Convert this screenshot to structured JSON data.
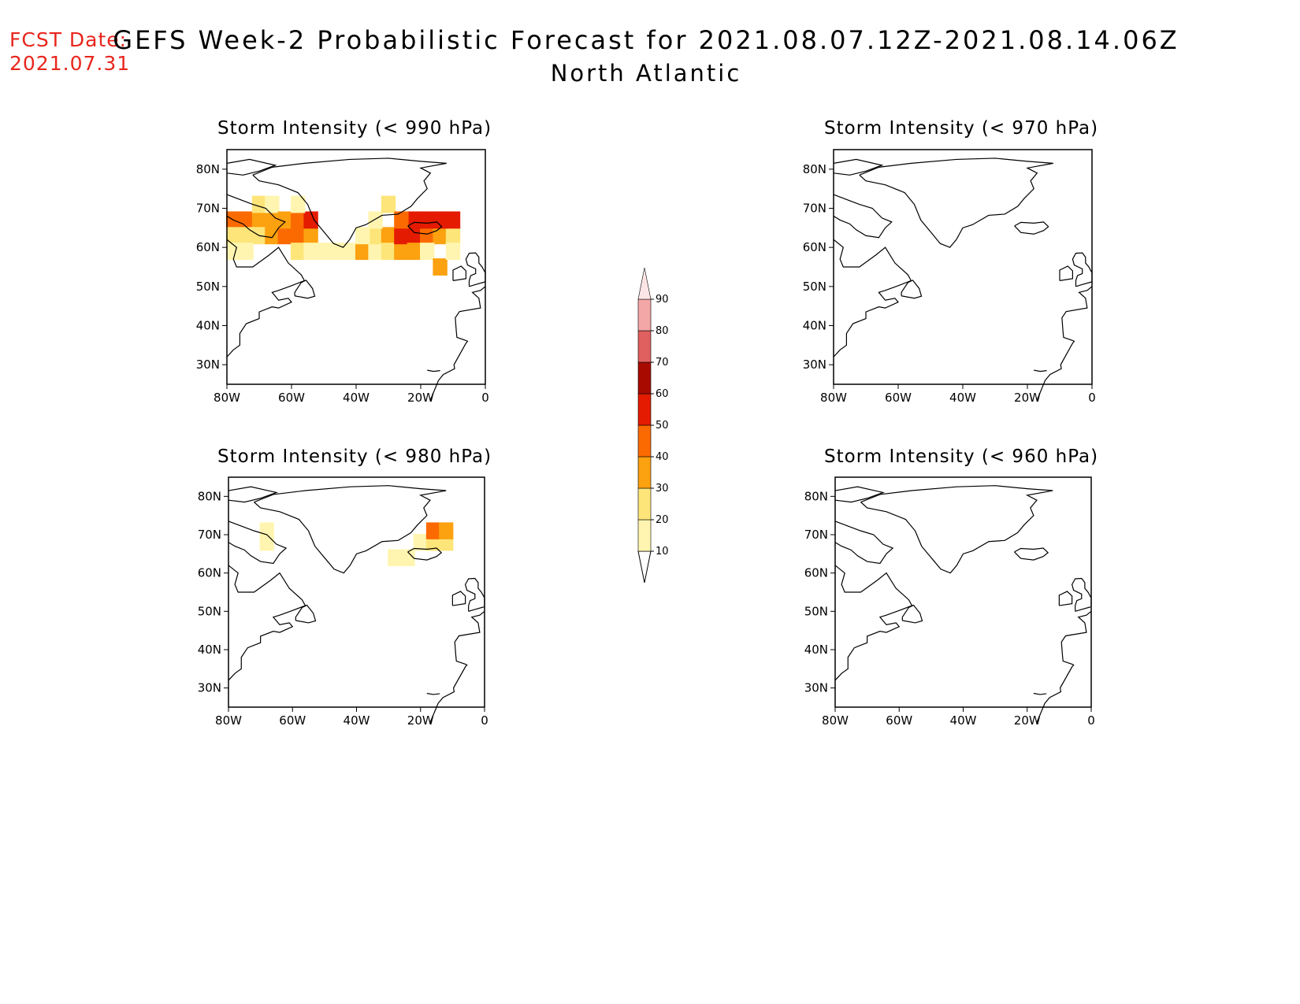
{
  "header": {
    "fcst_label": "FCST Date:",
    "fcst_date": "2021.07.31",
    "title": "GEFS Week-2 Probabilistic Forecast for 2021.08.07.12Z-2021.08.14.06Z",
    "region": "North Atlantic"
  },
  "axes": {
    "lat_ticks": [
      "80N",
      "70N",
      "60N",
      "50N",
      "40N",
      "30N"
    ],
    "lon_ticks": [
      "80W",
      "60W",
      "40W",
      "20W",
      "0"
    ],
    "lat_values": [
      80,
      70,
      60,
      50,
      40,
      30
    ],
    "lon_values": [
      -80,
      -60,
      -40,
      -20,
      0
    ],
    "lat_range": [
      25,
      85
    ],
    "lon_range": [
      -80,
      0
    ]
  },
  "colorbar": {
    "levels": [
      "10",
      "20",
      "30",
      "40",
      "50",
      "60",
      "70",
      "80",
      "90"
    ],
    "colors": [
      "#fff5b0",
      "#fde57a",
      "#fca10f",
      "#fb6a00",
      "#e41b00",
      "#a90a00",
      "#e0605f",
      "#f4a7a7",
      "#fde5e5"
    ]
  },
  "panels": [
    {
      "title": "Storm Intensity (< 990 hPa)",
      "threshold_hpa": 990,
      "cells": [
        {
          "lon": -80,
          "lat": 65,
          "p": 40
        },
        {
          "lon": -76,
          "lat": 65,
          "p": 40
        },
        {
          "lon": -72,
          "lat": 65,
          "p": 30
        },
        {
          "lon": -68,
          "lat": 65,
          "p": 30
        },
        {
          "lon": -72,
          "lat": 69,
          "p": 20
        },
        {
          "lon": -68,
          "lat": 69,
          "p": 10
        },
        {
          "lon": -80,
          "lat": 61,
          "p": 20
        },
        {
          "lon": -76,
          "lat": 61,
          "p": 20
        },
        {
          "lon": -72,
          "lat": 61,
          "p": 20
        },
        {
          "lon": -68,
          "lat": 61,
          "p": 30
        },
        {
          "lon": -64,
          "lat": 61,
          "p": 40
        },
        {
          "lon": -60,
          "lat": 61,
          "p": 40
        },
        {
          "lon": -56,
          "lat": 61,
          "p": 30
        },
        {
          "lon": -64,
          "lat": 65,
          "p": 30
        },
        {
          "lon": -60,
          "lat": 65,
          "p": 40
        },
        {
          "lon": -56,
          "lat": 65,
          "p": 50
        },
        {
          "lon": -60,
          "lat": 69,
          "p": 10
        },
        {
          "lon": -80,
          "lat": 57,
          "p": 10
        },
        {
          "lon": -76,
          "lat": 57,
          "p": 10
        },
        {
          "lon": -60,
          "lat": 57,
          "p": 20
        },
        {
          "lon": -56,
          "lat": 57,
          "p": 10
        },
        {
          "lon": -52,
          "lat": 57,
          "p": 10
        },
        {
          "lon": -48,
          "lat": 57,
          "p": 10
        },
        {
          "lon": -44,
          "lat": 57,
          "p": 10
        },
        {
          "lon": -40,
          "lat": 57,
          "p": 30
        },
        {
          "lon": -36,
          "lat": 57,
          "p": 10
        },
        {
          "lon": -36,
          "lat": 61,
          "p": 20
        },
        {
          "lon": -32,
          "lat": 61,
          "p": 30
        },
        {
          "lon": -32,
          "lat": 57,
          "p": 20
        },
        {
          "lon": -28,
          "lat": 57,
          "p": 30
        },
        {
          "lon": -28,
          "lat": 61,
          "p": 50
        },
        {
          "lon": -24,
          "lat": 61,
          "p": 50
        },
        {
          "lon": -24,
          "lat": 57,
          "p": 30
        },
        {
          "lon": -20,
          "lat": 61,
          "p": 40
        },
        {
          "lon": -16,
          "lat": 61,
          "p": 30
        },
        {
          "lon": -12,
          "lat": 61,
          "p": 20
        },
        {
          "lon": -24,
          "lat": 65,
          "p": 50
        },
        {
          "lon": -20,
          "lat": 65,
          "p": 50
        },
        {
          "lon": -16,
          "lat": 65,
          "p": 50
        },
        {
          "lon": -12,
          "lat": 65,
          "p": 50
        },
        {
          "lon": -36,
          "lat": 65,
          "p": 10
        },
        {
          "lon": -32,
          "lat": 69,
          "p": 20
        },
        {
          "lon": -28,
          "lat": 65,
          "p": 40
        },
        {
          "lon": -20,
          "lat": 57,
          "p": 10
        },
        {
          "lon": -16,
          "lat": 53,
          "p": 30
        },
        {
          "lon": -12,
          "lat": 57,
          "p": 10
        },
        {
          "lon": -40,
          "lat": 61,
          "p": 10
        }
      ]
    },
    {
      "title": "Storm Intensity (< 970 hPa)",
      "threshold_hpa": 970,
      "cells": []
    },
    {
      "title": "Storm Intensity (< 980 hPa)",
      "threshold_hpa": 980,
      "cells": [
        {
          "lon": -70,
          "lat": 69,
          "p": 10
        },
        {
          "lon": -70,
          "lat": 66,
          "p": 10
        },
        {
          "lon": -30,
          "lat": 62,
          "p": 10
        },
        {
          "lon": -26,
          "lat": 62,
          "p": 10
        },
        {
          "lon": -22,
          "lat": 66,
          "p": 10
        },
        {
          "lon": -18,
          "lat": 66,
          "p": 20
        },
        {
          "lon": -14,
          "lat": 66,
          "p": 20
        },
        {
          "lon": -18,
          "lat": 69,
          "p": 40
        },
        {
          "lon": -14,
          "lat": 69,
          "p": 30
        }
      ]
    },
    {
      "title": "Storm Intensity (< 960 hPa)",
      "threshold_hpa": 960,
      "cells": []
    }
  ]
}
